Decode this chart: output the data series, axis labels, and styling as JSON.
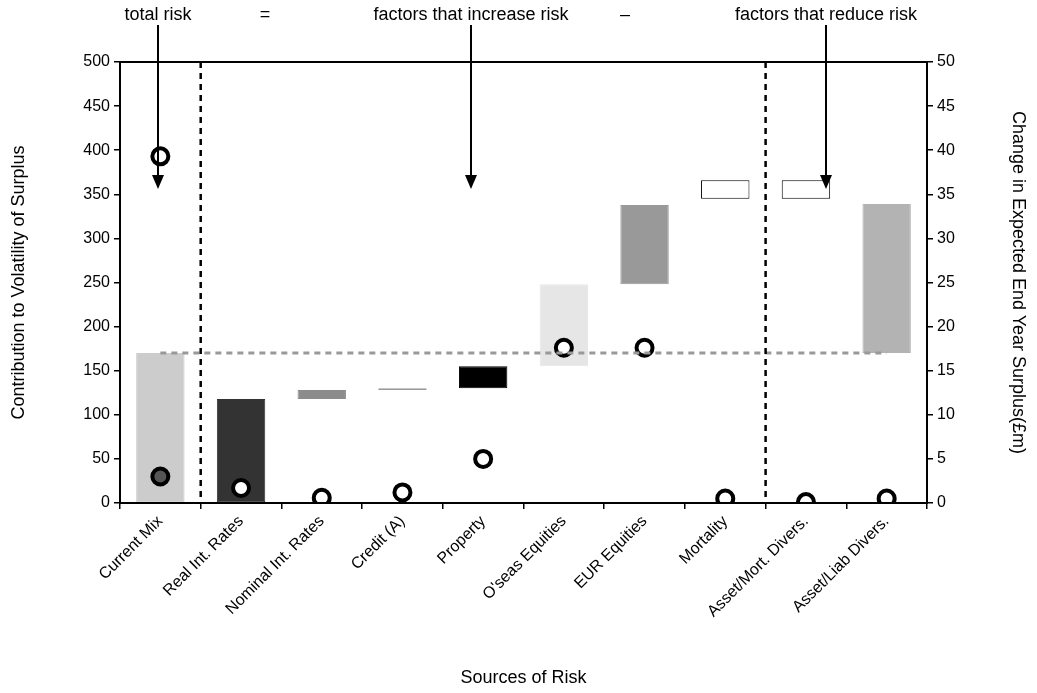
{
  "chart_data": {
    "type": "bar",
    "xlabel": "Sources of Risk",
    "ylabel": "Contribution to Volatility of Surplus",
    "y2label": "Change in Expected End Year Surplus(£m)",
    "categories": [
      "Current Mix",
      "Real Int. Rates",
      "Nominal Int. Rates",
      "Credit (A)",
      "Property",
      "O'seas Equities",
      "EUR Equities",
      "Mortality",
      "Asset/Mort. Divers.",
      "Asset/Liab Divers."
    ],
    "series": [
      {
        "values": [
          170,
          118,
          10,
          2,
          25,
          93,
          90,
          21,
          21,
          169
        ],
        "base": [
          0,
          0,
          118,
          128,
          130,
          155,
          248,
          345,
          345,
          170
        ],
        "colors": [
          "#cccccc",
          "#333333",
          "#8c8c8c",
          "#999999",
          "#000000",
          "#e6e6e6",
          "#999999",
          "#ffffff",
          "#ffffff",
          "#b3b3b3"
        ]
      },
      {
        "type": "scatter",
        "axis": "y2",
        "color": "#000000",
        "values": [
          3.0,
          1.7,
          0.6,
          1.2,
          5.0,
          17.6,
          17.6,
          0.5,
          0.1,
          0.5
        ],
        "colors": [
          "#555555",
          "#ffffff",
          "#ffffff",
          "#ffffff",
          "#ffffff",
          "#ffffff",
          "#ffffff",
          "#ffffff",
          "#ffffff",
          "#ffffff"
        ]
      },
      {
        "type": "scatter",
        "axis": "y2",
        "color": "#000000",
        "x": [
          "Current Mix"
        ],
        "values": [
          39.3
        ],
        "colors": [
          "#ffffff"
        ]
      }
    ],
    "ylim": [
      0,
      500
    ],
    "yticks": [
      0,
      50,
      100,
      150,
      200,
      250,
      300,
      350,
      400,
      450,
      500
    ],
    "y2lim": [
      0,
      50
    ],
    "y2ticks": [
      0,
      5,
      10,
      15,
      20,
      25,
      30,
      35,
      40,
      45,
      50
    ],
    "ref_lines": [
      {
        "axis": "y",
        "value": 170,
        "color": "#999999",
        "line_style": "dashed"
      }
    ],
    "annotations": [
      "total risk",
      "=",
      "factors that increase risk",
      "–",
      "factors that reduce risk"
    ],
    "marker": "circle",
    "grid": false,
    "legend": false
  }
}
